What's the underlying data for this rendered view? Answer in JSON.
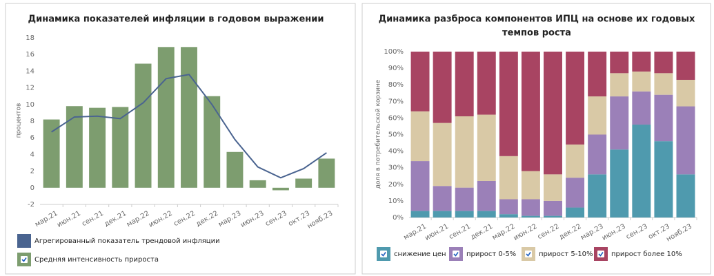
{
  "chart_data": [
    {
      "type": "combo",
      "title": "Динамика показателей инфляции в годовом выражении",
      "y_label": "процентов",
      "categories": [
        "мар.21",
        "июн.21",
        "сен.21",
        "дек.21",
        "мар.22",
        "июн.22",
        "сен.22",
        "дек.22",
        "мар.23",
        "июн.23",
        "сен.23",
        "окт.23",
        "нояб.23"
      ],
      "series": [
        {
          "name": "Агрегированный показатель трендовой инфляции",
          "type": "line",
          "color": "#4a6490",
          "values": [
            6.7,
            8.5,
            8.6,
            8.3,
            10.2,
            13.1,
            13.6,
            10.0,
            5.8,
            2.5,
            1.2,
            2.3,
            4.2
          ]
        },
        {
          "name": "Средняя интенсивность прироста",
          "type": "bar",
          "color": "#7d9d6f",
          "values": [
            8.2,
            9.8,
            9.6,
            9.7,
            14.9,
            16.9,
            16.9,
            11.0,
            4.3,
            0.9,
            -0.3,
            1.1,
            3.5
          ]
        }
      ],
      "ylim": [
        -2,
        18
      ],
      "yticks": [
        -2,
        0,
        2,
        4,
        6,
        8,
        10,
        12,
        14,
        16,
        18
      ],
      "grid": false
    },
    {
      "type": "stacked_bar",
      "title": [
        "Динамика разброса компонентов ИПЦ на основе их годовых",
        "темпов роста"
      ],
      "y_label": "доля в потребительской корзине",
      "categories": [
        "мар.21",
        "июн.21",
        "сен.21",
        "дек.21",
        "мар.22",
        "июн.22",
        "сен.22",
        "дек.22",
        "мар.23",
        "июн.23",
        "сен.23",
        "окт.23",
        "нояб.23"
      ],
      "series": [
        {
          "name": "снижение цен",
          "color": "#4f9aae",
          "values": [
            4,
            4,
            4,
            4,
            2,
            1,
            1,
            6,
            26,
            41,
            56,
            46,
            26
          ]
        },
        {
          "name": "прирост 0-5%",
          "color": "#9b80b8",
          "values": [
            30,
            15,
            14,
            18,
            9,
            10,
            9,
            18,
            24,
            32,
            20,
            28,
            41
          ]
        },
        {
          "name": "прирост 5-10%",
          "color": "#d9c9a6",
          "values": [
            30,
            38,
            43,
            40,
            26,
            17,
            16,
            20,
            23,
            14,
            12,
            13,
            16
          ]
        },
        {
          "name": "прирост более 10%",
          "color": "#a84462",
          "values": [
            36,
            43,
            39,
            38,
            63,
            72,
            74,
            56,
            27,
            13,
            12,
            13,
            17
          ]
        }
      ],
      "ylim": [
        0,
        100
      ],
      "yticks": [
        {
          "value": 0,
          "label": "0%"
        },
        {
          "value": 10,
          "label": "10%"
        },
        {
          "value": 20,
          "label": "20%"
        },
        {
          "value": 30,
          "label": "30%"
        },
        {
          "value": 40,
          "label": "40%"
        },
        {
          "value": 50,
          "label": "50%"
        },
        {
          "value": 60,
          "label": "60%"
        },
        {
          "value": 70,
          "label": "70%"
        },
        {
          "value": 80,
          "label": "80%"
        },
        {
          "value": 90,
          "label": "90%"
        },
        {
          "value": 100,
          "label": "100%"
        }
      ],
      "grid": false
    }
  ]
}
